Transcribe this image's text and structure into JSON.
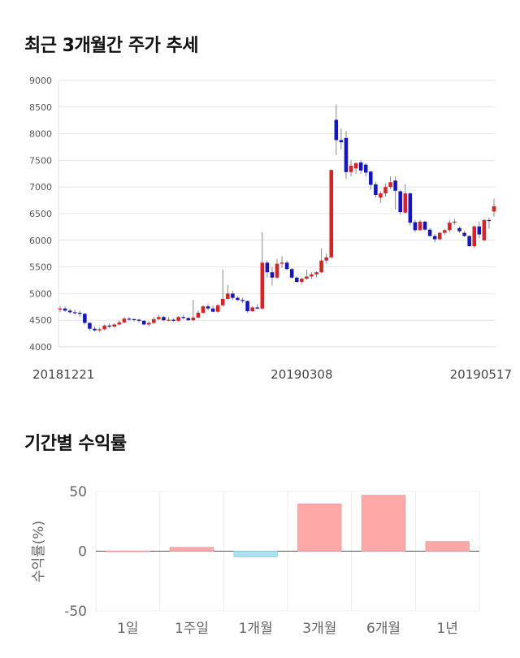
{
  "titles": {
    "price": "최근 3개월간 주가 추세",
    "returns": "기간별 수익률"
  },
  "colors": {
    "up": "#e02020",
    "down": "#1515c8",
    "positive_bar": "#ffa8a8",
    "negative_bar": "#a8e4f0",
    "grid": "#e6e6e6"
  },
  "chart_data": [
    {
      "type": "candlestick",
      "title": "최근 3개월간 주가 추세",
      "y_ticks": [
        "4000",
        "4500",
        "5000",
        "5500",
        "6000",
        "6500",
        "7000",
        "7500",
        "8000",
        "8500",
        "9000"
      ],
      "ylim": [
        4000,
        9000
      ],
      "x_tick_labels": [
        {
          "label": "20181221",
          "index": 0
        },
        {
          "label": "20190308",
          "index": 49
        },
        {
          "label": "20190517",
          "index": 97
        }
      ],
      "candles": [
        [
          4700,
          4760,
          4650,
          4720
        ],
        [
          4720,
          4760,
          4660,
          4680
        ],
        [
          4680,
          4720,
          4620,
          4650
        ],
        [
          4650,
          4700,
          4600,
          4640
        ],
        [
          4640,
          4680,
          4560,
          4620
        ],
        [
          4620,
          4640,
          4420,
          4450
        ],
        [
          4450,
          4460,
          4300,
          4340
        ],
        [
          4340,
          4380,
          4290,
          4310
        ],
        [
          4310,
          4360,
          4280,
          4330
        ],
        [
          4330,
          4420,
          4310,
          4400
        ],
        [
          4400,
          4440,
          4350,
          4380
        ],
        [
          4380,
          4440,
          4360,
          4420
        ],
        [
          4420,
          4500,
          4400,
          4460
        ],
        [
          4460,
          4560,
          4440,
          4530
        ],
        [
          4530,
          4560,
          4490,
          4520
        ],
        [
          4520,
          4540,
          4480,
          4510
        ],
        [
          4510,
          4530,
          4460,
          4490
        ],
        [
          4490,
          4500,
          4400,
          4420
        ],
        [
          4420,
          4480,
          4380,
          4450
        ],
        [
          4450,
          4560,
          4430,
          4520
        ],
        [
          4520,
          4600,
          4500,
          4560
        ],
        [
          4560,
          4580,
          4480,
          4500
        ],
        [
          4500,
          4560,
          4480,
          4510
        ],
        [
          4510,
          4540,
          4470,
          4490
        ],
        [
          4490,
          4580,
          4470,
          4560
        ],
        [
          4560,
          4600,
          4520,
          4540
        ],
        [
          4540,
          4560,
          4490,
          4500
        ],
        [
          4500,
          4880,
          4480,
          4550
        ],
        [
          4550,
          4680,
          4540,
          4640
        ],
        [
          4640,
          4780,
          4620,
          4760
        ],
        [
          4760,
          4800,
          4680,
          4720
        ],
        [
          4720,
          4780,
          4650,
          4660
        ],
        [
          4660,
          4800,
          4640,
          4780
        ],
        [
          4780,
          5450,
          4760,
          4900
        ],
        [
          4900,
          5160,
          4880,
          5000
        ],
        [
          5000,
          5050,
          4880,
          4920
        ],
        [
          4920,
          4950,
          4860,
          4880
        ],
        [
          4880,
          4920,
          4820,
          4860
        ],
        [
          4860,
          4870,
          4640,
          4670
        ],
        [
          4670,
          4760,
          4660,
          4740
        ],
        [
          4740,
          4800,
          4700,
          4720
        ],
        [
          4720,
          6150,
          4700,
          5580
        ],
        [
          5580,
          5620,
          5300,
          5400
        ],
        [
          5400,
          5500,
          5150,
          5300
        ],
        [
          5300,
          5650,
          5280,
          5560
        ],
        [
          5560,
          5700,
          5480,
          5580
        ],
        [
          5580,
          5620,
          5440,
          5460
        ],
        [
          5460,
          5480,
          5280,
          5300
        ],
        [
          5300,
          5320,
          5200,
          5220
        ],
        [
          5220,
          5300,
          5180,
          5280
        ],
        [
          5280,
          5450,
          5260,
          5320
        ],
        [
          5320,
          5400,
          5280,
          5360
        ],
        [
          5360,
          5420,
          5300,
          5400
        ],
        [
          5400,
          5850,
          5380,
          5620
        ],
        [
          5620,
          5750,
          5560,
          5680
        ],
        [
          5680,
          7320,
          5660,
          7320
        ],
        [
          8260,
          8550,
          7600,
          7880
        ],
        [
          7880,
          8100,
          7700,
          7840
        ],
        [
          7920,
          8050,
          7150,
          7280
        ],
        [
          7280,
          7500,
          7200,
          7400
        ],
        [
          7350,
          7450,
          7250,
          7450
        ],
        [
          7460,
          7500,
          7250,
          7310
        ],
        [
          7420,
          7450,
          7200,
          7270
        ],
        [
          7290,
          7300,
          6950,
          7040
        ],
        [
          7050,
          7100,
          6800,
          6850
        ],
        [
          6800,
          6920,
          6700,
          6880
        ],
        [
          6880,
          7060,
          6820,
          7000
        ],
        [
          7000,
          7200,
          6960,
          7090
        ],
        [
          7120,
          7200,
          6580,
          6930
        ],
        [
          6920,
          6950,
          6480,
          6530
        ],
        [
          6520,
          7050,
          6500,
          6880
        ],
        [
          6880,
          6900,
          6280,
          6330
        ],
        [
          6340,
          6380,
          6150,
          6190
        ],
        [
          6190,
          6380,
          6180,
          6350
        ],
        [
          6350,
          6370,
          6180,
          6200
        ],
        [
          6200,
          6230,
          6070,
          6080
        ],
        [
          6080,
          6120,
          5960,
          6020
        ],
        [
          6020,
          6150,
          6000,
          6140
        ],
        [
          6140,
          6210,
          6100,
          6190
        ],
        [
          6190,
          6380,
          6150,
          6330
        ],
        [
          6340,
          6400,
          6290,
          6350
        ],
        [
          6230,
          6260,
          6140,
          6170
        ],
        [
          6140,
          6180,
          6060,
          6080
        ],
        [
          6080,
          6090,
          5880,
          5890
        ],
        [
          5890,
          6280,
          5860,
          6260
        ],
        [
          6260,
          6350,
          6040,
          6110
        ],
        [
          6000,
          6400,
          5990,
          6380
        ],
        [
          6380,
          6430,
          6220,
          6360
        ],
        [
          6540,
          6780,
          6440,
          6640
        ]
      ]
    },
    {
      "type": "bar",
      "title": "기간별 수익률",
      "ylabel": "수익률(%)",
      "ylim": [
        -50,
        50
      ],
      "y_ticks": [
        "50",
        "0",
        "-50"
      ],
      "categories": [
        "1일",
        "1주일",
        "1개월",
        "3개월",
        "6개월",
        "1년"
      ],
      "values": [
        0.2,
        3.2,
        -4.8,
        39.5,
        46.8,
        8.0
      ]
    }
  ]
}
